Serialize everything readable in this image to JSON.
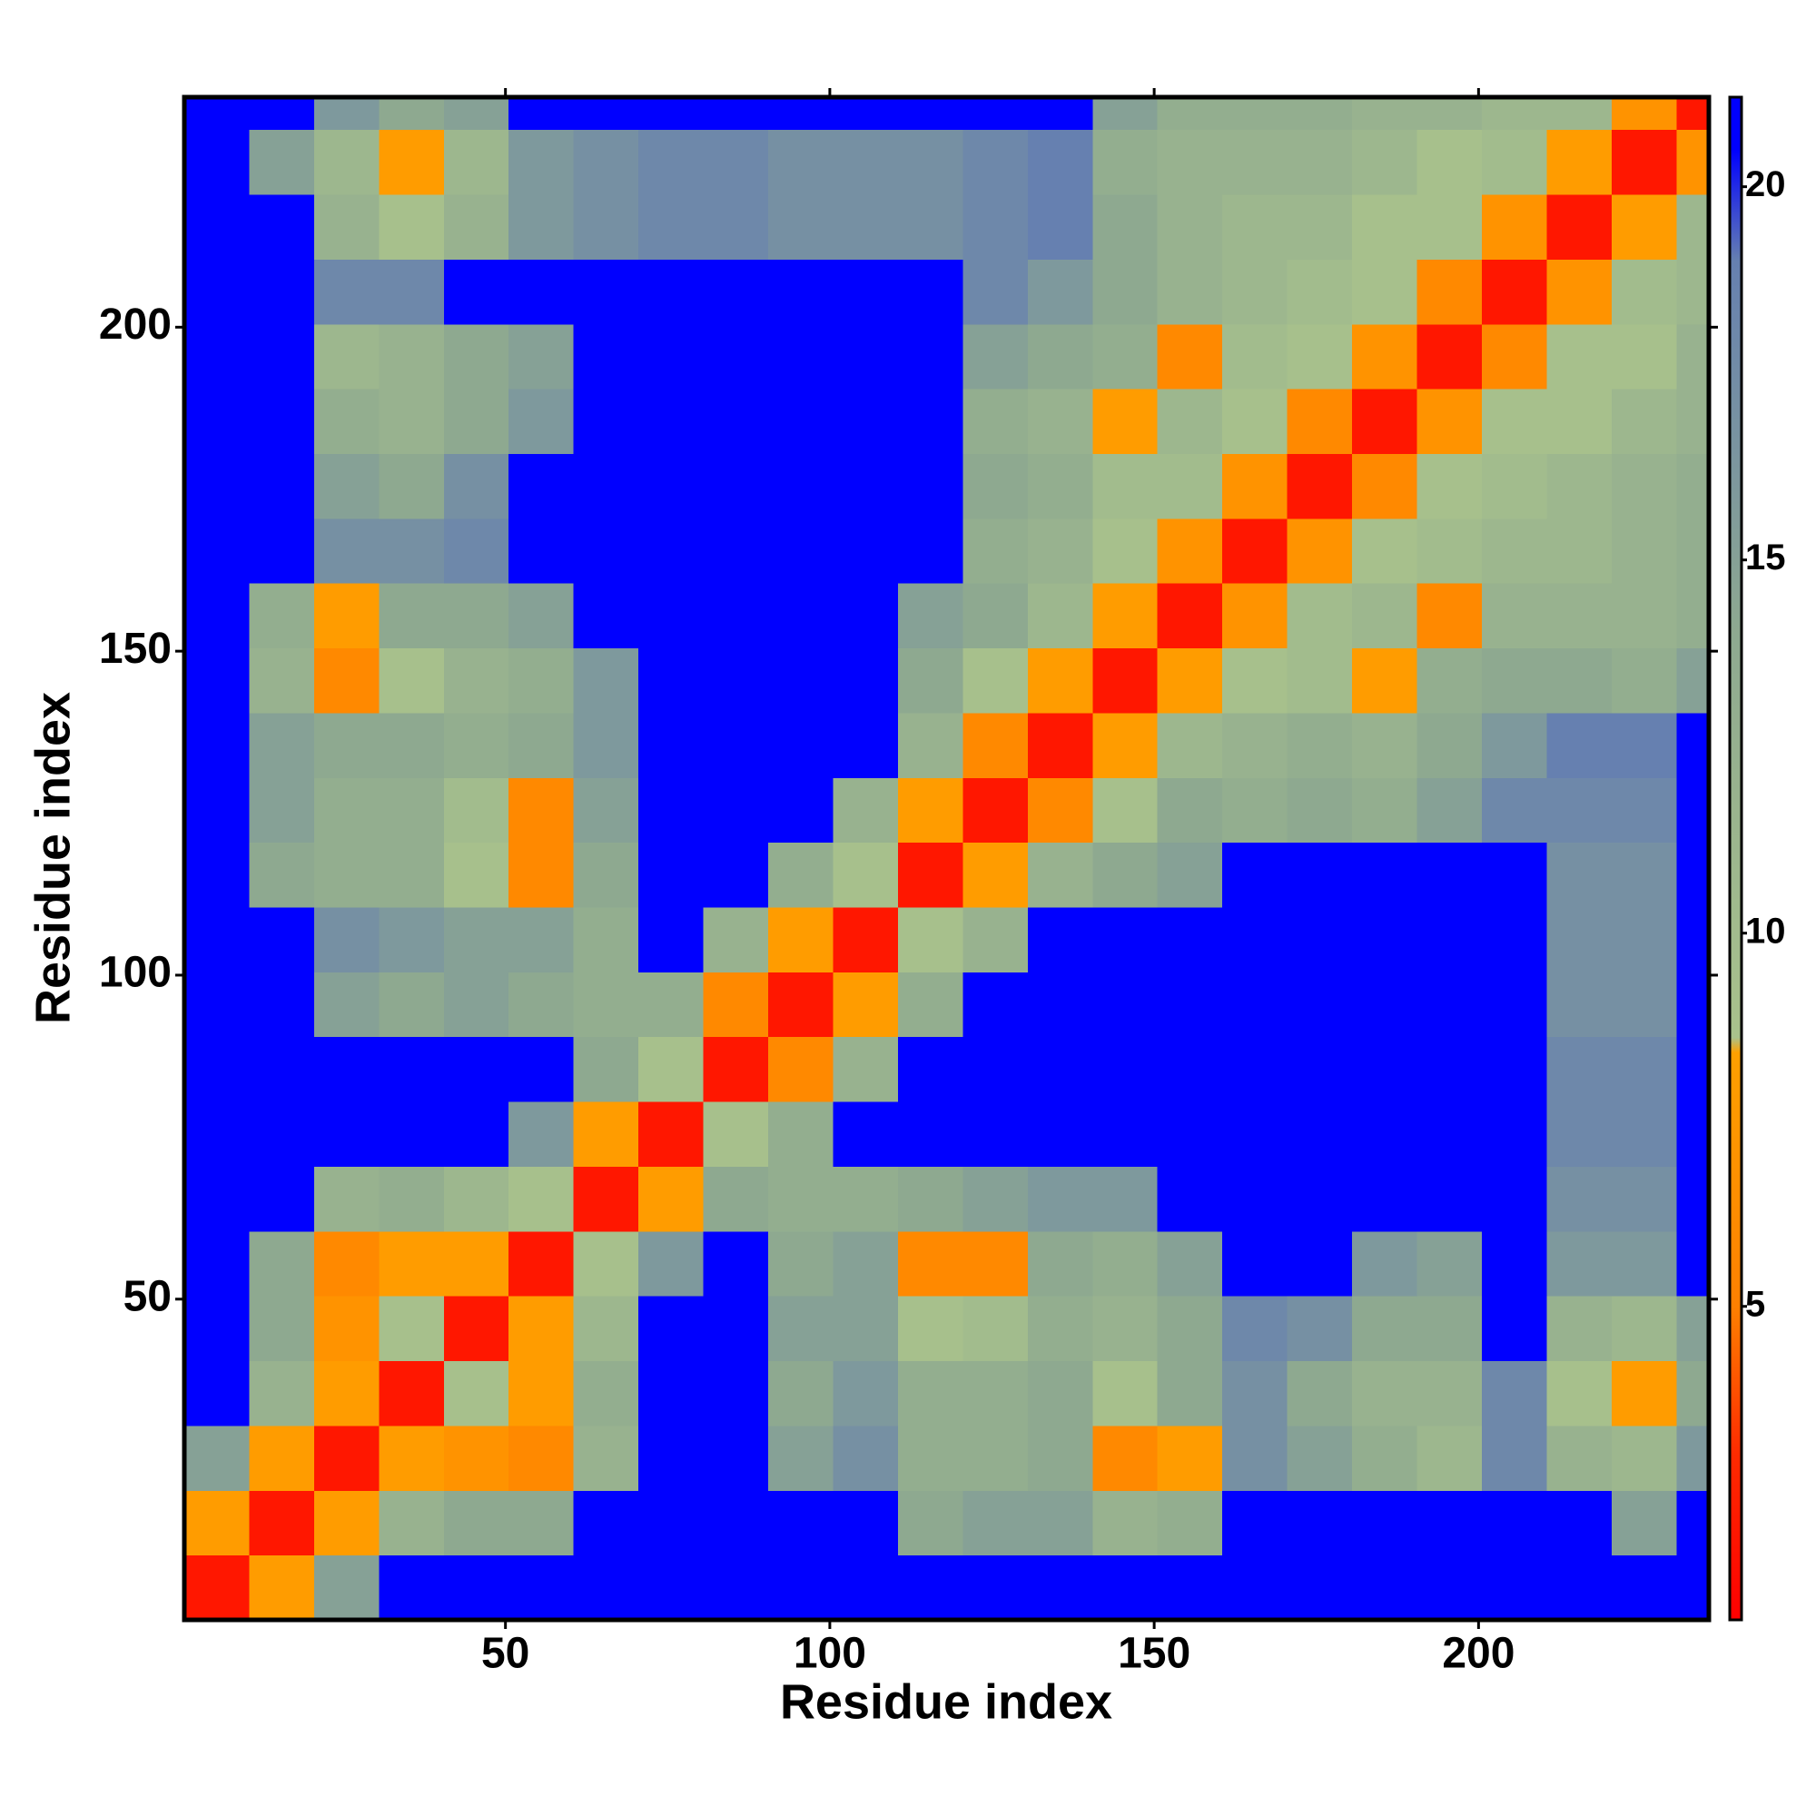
{
  "chart_data": {
    "type": "heatmap",
    "x_label": "Residue index",
    "y_label": "Residue index",
    "xlim": [
      0.5,
      235.5
    ],
    "ylim": [
      0.5,
      235.5
    ],
    "xticks": [
      50,
      100,
      150,
      200
    ],
    "yticks": [
      50,
      100,
      150,
      200
    ],
    "x_bins": [
      0.5,
      10.5,
      20.5,
      30.5,
      40.5,
      50.5,
      60.5,
      70.5,
      80.5,
      90.5,
      100.5,
      110.5,
      120.5,
      130.5,
      140.5,
      150.5,
      160.5,
      170.5,
      180.5,
      190.5,
      200.5,
      210.5,
      220.5,
      230.5,
      235.5
    ],
    "y_bins": [
      0.5,
      10.5,
      20.5,
      30.5,
      40.5,
      50.5,
      60.5,
      70.5,
      80.5,
      90.5,
      100.5,
      110.5,
      120.5,
      130.5,
      140.5,
      150.5,
      160.5,
      170.5,
      180.5,
      190.5,
      200.5,
      210.5,
      220.5,
      230.5,
      235.5
    ],
    "clim": [
      0.8,
      21.2
    ],
    "colorbar_ticks": [
      5,
      10,
      15,
      20
    ],
    "colorscale": [
      [
        0.8,
        "#ff0000"
      ],
      [
        3,
        "#ff2a00"
      ],
      [
        5,
        "#ff8000"
      ],
      [
        8.4,
        "#ffa000"
      ],
      [
        8.6,
        "#a9c28c"
      ],
      [
        14,
        "#8ea990"
      ],
      [
        19,
        "#6680b0"
      ],
      [
        20.5,
        "#0000ff"
      ],
      [
        21.2,
        "#0000ff"
      ]
    ],
    "values": [
      [
        2,
        8,
        15,
        21,
        21,
        21,
        21,
        21,
        21,
        21,
        21,
        21,
        21,
        21,
        21,
        21,
        21,
        21,
        21,
        21,
        21,
        21,
        21,
        21
      ],
      [
        8,
        2,
        8,
        12,
        14,
        14,
        21,
        21,
        21,
        21,
        21,
        14,
        15,
        15,
        12,
        13,
        21,
        21,
        21,
        21,
        21,
        21,
        15,
        21
      ],
      [
        15,
        8,
        2,
        8,
        7,
        6,
        12,
        21,
        21,
        15,
        17,
        13,
        13,
        14,
        6,
        8,
        17,
        15,
        13,
        11,
        18,
        12,
        11,
        16
      ],
      [
        21,
        12,
        8,
        2,
        9,
        8,
        13,
        21,
        21,
        14,
        16,
        13,
        13,
        14,
        9,
        14,
        17,
        14,
        12,
        12,
        18,
        9,
        8,
        14
      ],
      [
        21,
        14,
        7,
        9,
        2,
        8,
        11,
        21,
        21,
        15,
        15,
        9,
        10,
        13,
        12,
        14,
        18,
        17,
        14,
        14,
        21,
        12,
        11,
        15
      ],
      [
        21,
        14,
        6,
        8,
        8,
        2,
        9,
        16,
        21,
        14,
        15,
        6,
        6,
        14,
        13,
        15,
        21,
        21,
        16,
        15,
        21,
        16,
        16,
        21
      ],
      [
        21,
        21,
        12,
        13,
        11,
        9,
        2,
        8,
        14,
        13,
        13,
        14,
        15,
        16,
        16,
        21,
        21,
        21,
        21,
        21,
        21,
        17,
        17,
        21
      ],
      [
        21,
        21,
        21,
        21,
        21,
        16,
        8,
        2,
        9,
        13,
        21,
        21,
        21,
        21,
        21,
        21,
        21,
        21,
        21,
        21,
        21,
        18,
        18,
        21
      ],
      [
        21,
        21,
        21,
        21,
        21,
        21,
        14,
        9,
        2,
        6,
        12,
        21,
        21,
        21,
        21,
        21,
        21,
        21,
        21,
        21,
        21,
        18,
        18,
        21
      ],
      [
        21,
        21,
        15,
        14,
        15,
        14,
        13,
        13,
        6,
        2,
        8,
        13,
        21,
        21,
        21,
        21,
        21,
        21,
        21,
        21,
        21,
        17,
        17,
        21
      ],
      [
        21,
        21,
        17,
        16,
        15,
        15,
        13,
        21,
        12,
        8,
        2,
        9,
        12,
        21,
        21,
        21,
        21,
        21,
        21,
        21,
        21,
        17,
        17,
        21
      ],
      [
        21,
        14,
        13,
        13,
        9,
        6,
        14,
        21,
        21,
        13,
        9,
        2,
        8,
        12,
        14,
        15,
        21,
        21,
        21,
        21,
        21,
        17,
        17,
        21
      ],
      [
        21,
        15,
        13,
        13,
        10,
        6,
        15,
        21,
        21,
        21,
        12,
        8,
        2,
        6,
        9,
        14,
        13,
        14,
        13,
        15,
        18,
        18,
        18,
        21
      ],
      [
        21,
        15,
        14,
        14,
        13,
        14,
        16,
        21,
        21,
        21,
        21,
        12,
        6,
        2,
        8,
        11,
        12,
        13,
        12,
        14,
        16,
        19,
        19,
        21
      ],
      [
        21,
        12,
        6,
        9,
        12,
        13,
        16,
        21,
        21,
        21,
        21,
        14,
        9,
        8,
        2,
        8,
        9,
        10,
        8,
        13,
        14,
        14,
        13,
        15
      ],
      [
        21,
        13,
        8,
        14,
        14,
        15,
        21,
        21,
        21,
        21,
        21,
        15,
        14,
        11,
        8,
        2,
        7,
        10,
        11,
        6,
        12,
        12,
        12,
        13
      ],
      [
        21,
        21,
        17,
        17,
        18,
        21,
        21,
        21,
        21,
        21,
        21,
        21,
        13,
        12,
        9,
        7,
        2,
        7,
        9,
        10,
        11,
        11,
        12,
        13
      ],
      [
        21,
        21,
        15,
        14,
        17,
        21,
        21,
        21,
        21,
        21,
        21,
        21,
        14,
        13,
        10,
        10,
        7,
        2,
        6,
        9,
        10,
        11,
        12,
        13
      ],
      [
        21,
        21,
        13,
        12,
        14,
        16,
        21,
        21,
        21,
        21,
        21,
        21,
        13,
        12,
        8,
        11,
        9,
        6,
        2,
        7,
        9,
        9,
        11,
        12
      ],
      [
        21,
        21,
        11,
        12,
        14,
        15,
        21,
        21,
        21,
        21,
        21,
        21,
        15,
        14,
        13,
        6,
        10,
        9,
        7,
        2,
        6,
        9,
        9,
        12
      ],
      [
        21,
        21,
        18,
        18,
        21,
        21,
        21,
        21,
        21,
        21,
        21,
        21,
        18,
        16,
        14,
        12,
        11,
        10,
        9,
        6,
        2,
        7,
        10,
        11
      ],
      [
        21,
        21,
        12,
        9,
        12,
        16,
        17,
        18,
        18,
        17,
        17,
        17,
        18,
        19,
        14,
        12,
        11,
        11,
        9,
        9,
        7,
        2,
        8,
        11
      ],
      [
        21,
        15,
        11,
        8,
        11,
        16,
        17,
        18,
        18,
        17,
        17,
        17,
        18,
        19,
        13,
        12,
        12,
        12,
        11,
        9,
        10,
        8,
        2,
        7
      ],
      [
        21,
        21,
        16,
        14,
        15,
        21,
        21,
        21,
        21,
        21,
        21,
        21,
        21,
        21,
        15,
        13,
        13,
        13,
        12,
        12,
        11,
        11,
        7,
        2
      ]
    ]
  }
}
